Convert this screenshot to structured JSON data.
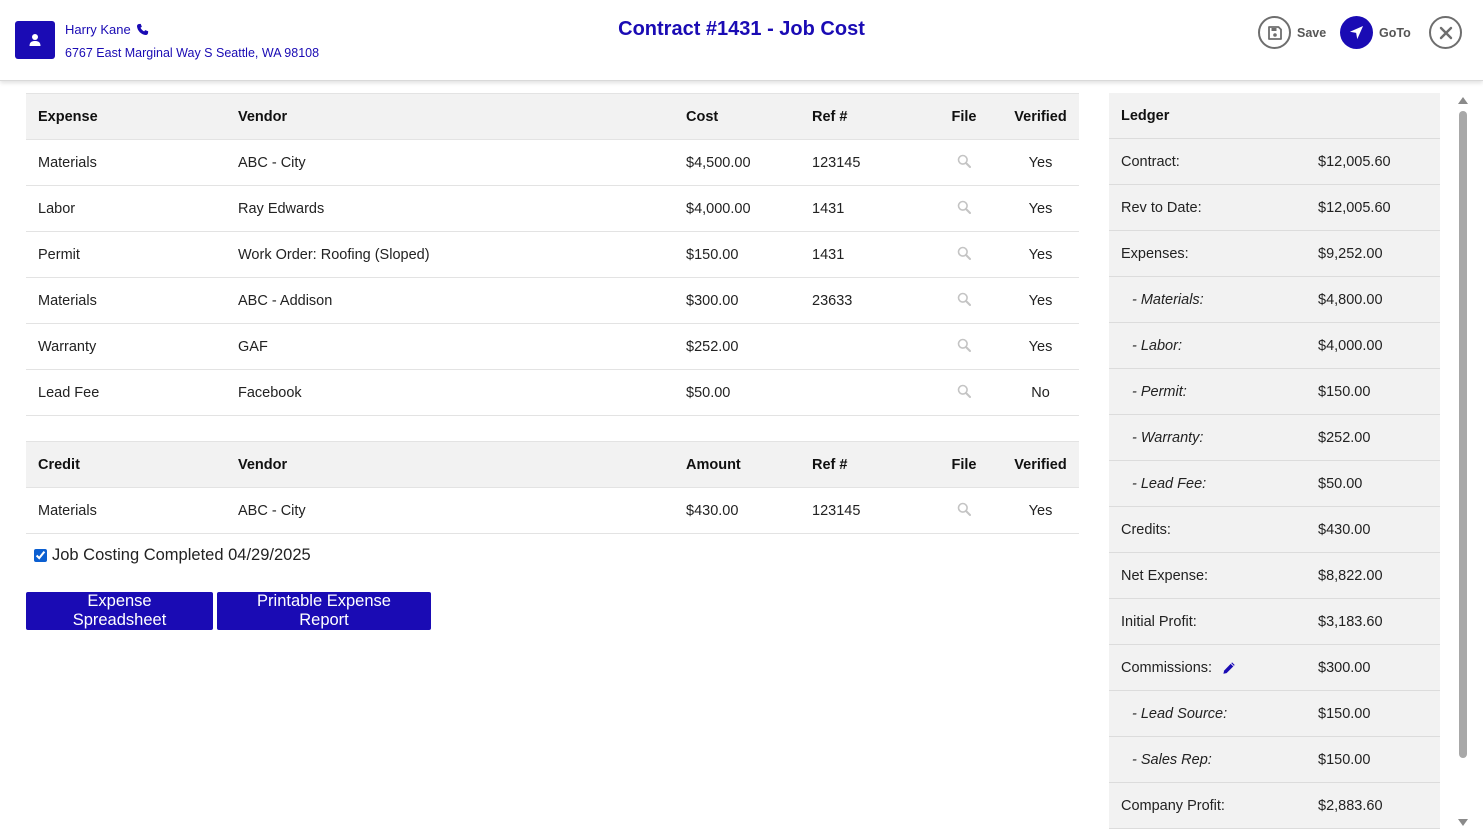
{
  "header": {
    "customer_name": "Harry Kane",
    "customer_address": "6767 East Marginal Way S Seattle, WA 98108",
    "title": "Contract #1431 - Job Cost",
    "save_label": "Save",
    "goto_label": "GoTo"
  },
  "expenses": {
    "headers": [
      "Expense",
      "Vendor",
      "Cost",
      "Ref #",
      "File",
      "Verified"
    ],
    "rows": [
      {
        "type": "Materials",
        "vendor": "ABC - City",
        "amount": "$4,500.00",
        "ref": "123145",
        "verified": "Yes"
      },
      {
        "type": "Labor",
        "vendor": "Ray Edwards",
        "amount": "$4,000.00",
        "ref": "1431",
        "verified": "Yes"
      },
      {
        "type": "Permit",
        "vendor": "Work Order: Roofing (Sloped)",
        "amount": "$150.00",
        "ref": "1431",
        "verified": "Yes"
      },
      {
        "type": "Materials",
        "vendor": "ABC - Addison",
        "amount": "$300.00",
        "ref": "23633",
        "verified": "Yes"
      },
      {
        "type": "Warranty",
        "vendor": "GAF",
        "amount": "$252.00",
        "ref": "",
        "verified": "Yes"
      },
      {
        "type": "Lead Fee",
        "vendor": "Facebook",
        "amount": "$50.00",
        "ref": "",
        "verified": "No"
      }
    ]
  },
  "credits": {
    "headers": [
      "Credit",
      "Vendor",
      "Amount",
      "Ref #",
      "File",
      "Verified"
    ],
    "rows": [
      {
        "type": "Materials",
        "vendor": "ABC - City",
        "amount": "$430.00",
        "ref": "123145",
        "verified": "Yes"
      }
    ]
  },
  "job_costing": {
    "checked": true,
    "label": "Job Costing Completed 04/29/2025"
  },
  "buttons": {
    "spreadsheet": "Expense Spreadsheet",
    "printable": "Printable Expense Report"
  },
  "ledger": {
    "title": "Ledger",
    "rows": [
      {
        "label": "Contract:",
        "value": "$12,005.60",
        "sub": false
      },
      {
        "label": "Rev to Date:",
        "value": "$12,005.60",
        "sub": false
      },
      {
        "label": "Expenses:",
        "value": "$9,252.00",
        "sub": false
      },
      {
        "label": "- Materials:",
        "value": "$4,800.00",
        "sub": true
      },
      {
        "label": "- Labor:",
        "value": "$4,000.00",
        "sub": true
      },
      {
        "label": "- Permit:",
        "value": "$150.00",
        "sub": true
      },
      {
        "label": "- Warranty:",
        "value": "$252.00",
        "sub": true
      },
      {
        "label": "- Lead Fee:",
        "value": "$50.00",
        "sub": true
      },
      {
        "label": "Credits:",
        "value": "$430.00",
        "sub": false
      },
      {
        "label": "Net Expense:",
        "value": "$8,822.00",
        "sub": false
      },
      {
        "label": "Initial Profit:",
        "value": "$3,183.60",
        "sub": false
      },
      {
        "label": "Commissions:",
        "value": "$300.00",
        "sub": false,
        "editable": true
      },
      {
        "label": "- Lead Source:",
        "value": "$150.00",
        "sub": true
      },
      {
        "label": "- Sales Rep:",
        "value": "$150.00",
        "sub": true
      },
      {
        "label": "Company Profit:",
        "value": "$2,883.60",
        "sub": false
      }
    ]
  },
  "colors": {
    "accent": "#1a0bb4",
    "header_bg": "#f2f2f2",
    "icon_gray": "#c4c4c4"
  },
  "icons": {
    "avatar": "user-icon",
    "phone": "phone-icon",
    "save": "save-icon",
    "goto": "navigate-arrow-icon",
    "close": "close-icon",
    "file": "search-icon",
    "edit": "pencil-icon"
  }
}
